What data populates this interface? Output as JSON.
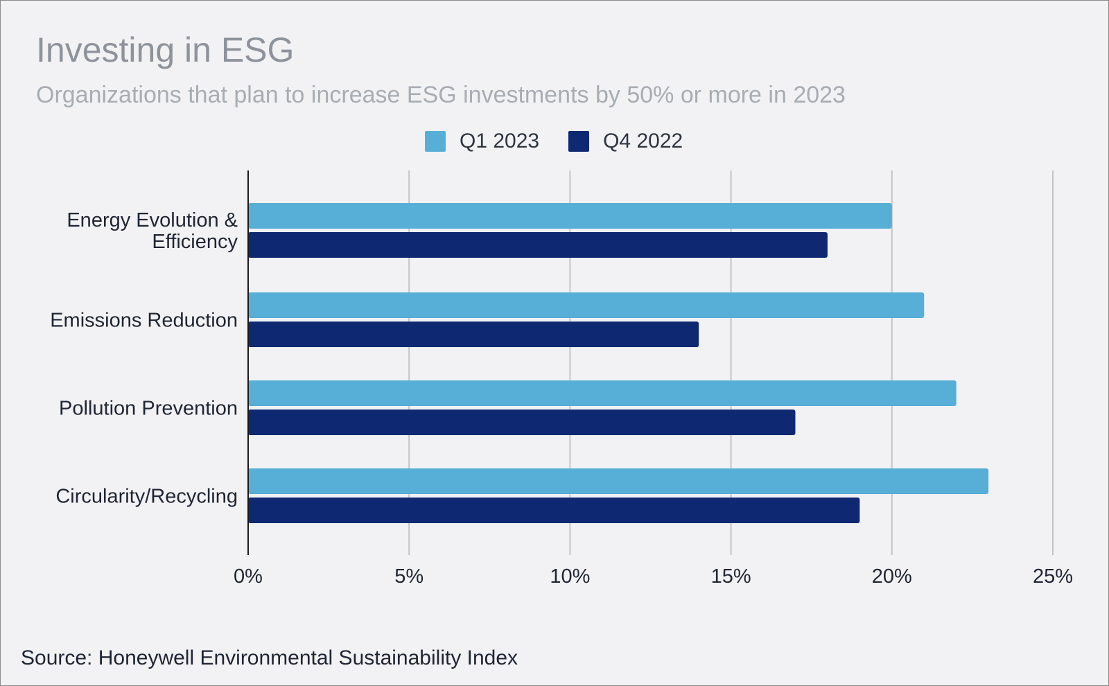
{
  "header": {
    "title": "Investing in ESG",
    "subtitle": "Organizations that plan to increase ESG investments by 50% or more in 2023"
  },
  "legend": [
    {
      "label": "Q1 2023",
      "color": "#57aed7"
    },
    {
      "label": "Q4 2022",
      "color": "#0e2872"
    }
  ],
  "footer": {
    "source": "Source: Honeywell Environmental Sustainability Index"
  },
  "chart_data": {
    "type": "bar",
    "orientation": "horizontal",
    "title": "Investing in ESG",
    "subtitle": "Organizations that plan to increase ESG investments by 50% or more in 2023",
    "categories": [
      [
        "Energy Evolution &",
        "Efficiency"
      ],
      [
        "Emissions Reduction"
      ],
      [
        "Pollution Prevention"
      ],
      [
        "Circularity/Recycling"
      ]
    ],
    "series": [
      {
        "name": "Q1 2023",
        "color": "#57aed7",
        "values": [
          20,
          21,
          22,
          23
        ]
      },
      {
        "name": "Q4 2022",
        "color": "#0e2872",
        "values": [
          18,
          14,
          17,
          19
        ]
      }
    ],
    "xlim": [
      0,
      25
    ],
    "xticks": [
      0,
      5,
      10,
      15,
      20,
      25
    ],
    "tick_labels": [
      "0%",
      "5%",
      "10%",
      "15%",
      "20%",
      "25%"
    ],
    "grid": "vertical",
    "legend_position": "top-center"
  }
}
